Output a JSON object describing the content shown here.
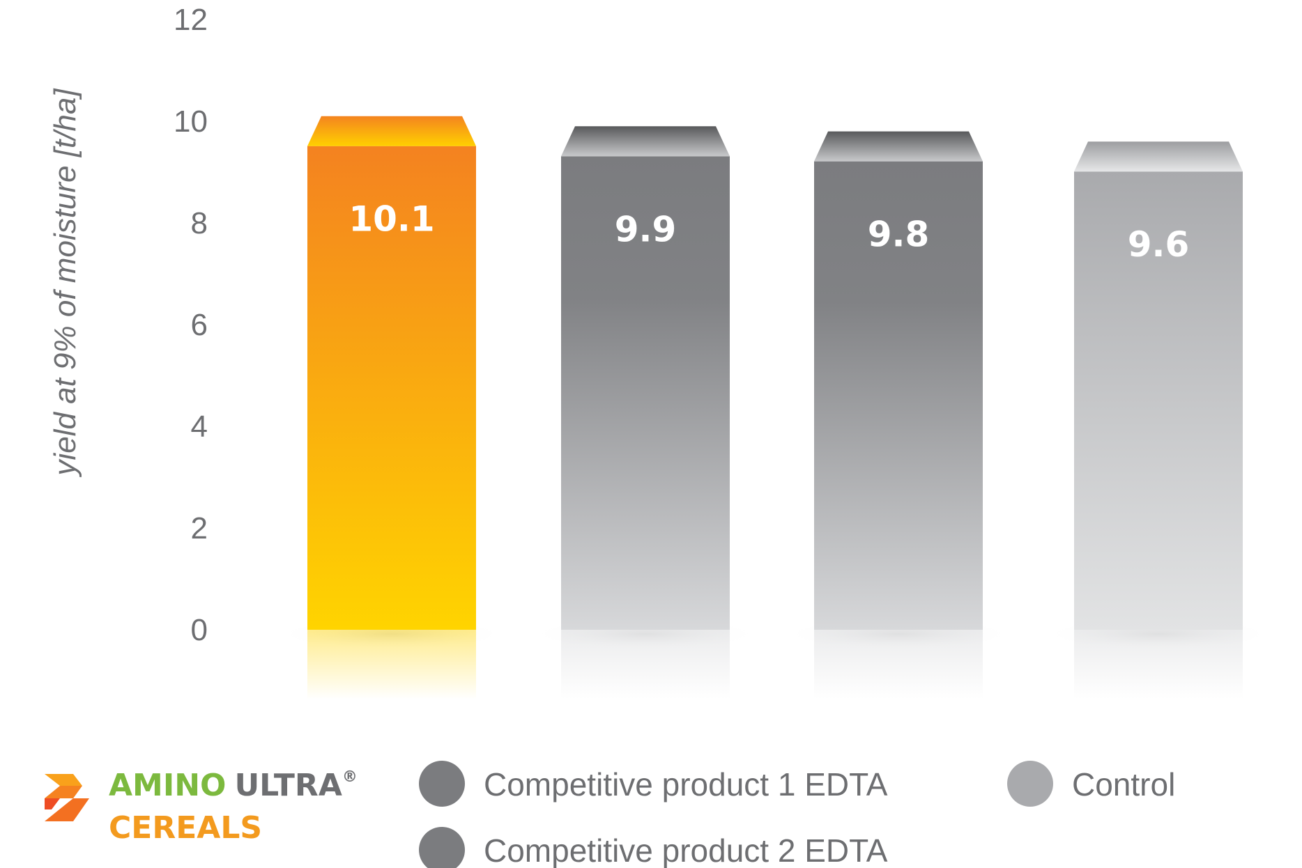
{
  "chart_data": {
    "type": "bar",
    "categories": [
      "AMINO ULTRA® CEREALS",
      "Competitive product 1 EDTA",
      "Competitive product 2 EDTA",
      "Control"
    ],
    "values": [
      10.1,
      9.9,
      9.8,
      9.6
    ],
    "value_labels": [
      "10.1",
      "9.9",
      "9.8",
      "9.6"
    ],
    "ylabel": "yield at 9% of moisture [t/ha]",
    "ylim": [
      0,
      12
    ],
    "yticks": [
      "0",
      "2",
      "4",
      "6",
      "8",
      "10",
      "12"
    ],
    "grid": false,
    "legend_position": "bottom"
  },
  "colors": {
    "amino_top": "#f48220",
    "amino_bottom": "#ffd400",
    "dark_top": "#7b7c7f",
    "dark_bottom": "#d7d8da",
    "control_top": "#a9aaad",
    "control_bottom": "#e2e3e4",
    "axis_text": "#6d6e71",
    "brand_green": "#7cb93e",
    "brand_gray": "#6d6e71",
    "brand_orange": "#f39a1e"
  },
  "legend": {
    "brand": {
      "amino": "AMINO",
      "ultra": "ULTRA",
      "reg": "®",
      "cereals": "CEREALS"
    },
    "items": [
      {
        "label": "Competitive product 1 EDTA",
        "color": "#7b7c7f"
      },
      {
        "label": "Competitive product 2 EDTA",
        "color": "#7b7c7f"
      },
      {
        "label": "Control",
        "color": "#a9aaad"
      }
    ]
  }
}
